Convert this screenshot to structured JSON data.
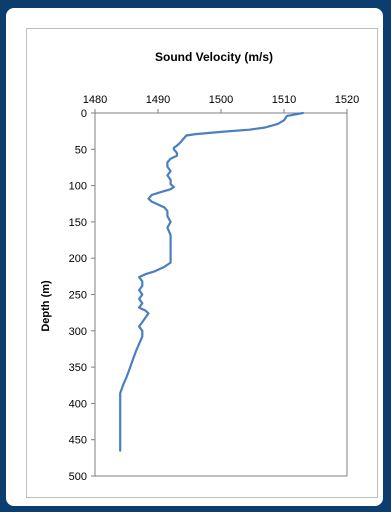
{
  "chart_data": {
    "type": "line",
    "title": "Sound Velocity (m/s)",
    "xlabel": "",
    "ylabel": "Depth (m)",
    "xlim": [
      1480,
      1520
    ],
    "ylim": [
      0,
      500
    ],
    "x_axis_position": "top",
    "y_inverted": true,
    "xticks": [
      "1480",
      "1490",
      "1500",
      "1510",
      "1520"
    ],
    "yticks": [
      "0",
      "50",
      "100",
      "150",
      "200",
      "250",
      "300",
      "350",
      "400",
      "450",
      "500"
    ],
    "grid": false,
    "colors": {
      "line": "#4a7fc1",
      "axis": "#7f7f7f",
      "frame": "#bfbfbf",
      "background": "#0b3d6e"
    },
    "series": [
      {
        "points": [
          [
            1513.0,
            0
          ],
          [
            1510.5,
            4
          ],
          [
            1510.0,
            10
          ],
          [
            1509.0,
            15
          ],
          [
            1507.0,
            20
          ],
          [
            1504.5,
            23
          ],
          [
            1500.0,
            26
          ],
          [
            1496.0,
            29
          ],
          [
            1494.5,
            31
          ],
          [
            1494.0,
            36
          ],
          [
            1493.5,
            41
          ],
          [
            1493.0,
            45
          ],
          [
            1492.5,
            48
          ],
          [
            1492.5,
            50
          ],
          [
            1493.0,
            55
          ],
          [
            1493.0,
            59
          ],
          [
            1492.0,
            63
          ],
          [
            1491.5,
            68
          ],
          [
            1491.5,
            74
          ],
          [
            1492.0,
            80
          ],
          [
            1491.5,
            86
          ],
          [
            1492.0,
            92
          ],
          [
            1492.0,
            98
          ],
          [
            1492.5,
            102
          ],
          [
            1492.0,
            105
          ],
          [
            1490.0,
            110
          ],
          [
            1489.0,
            113
          ],
          [
            1488.5,
            118
          ],
          [
            1489.0,
            122
          ],
          [
            1490.0,
            126
          ],
          [
            1491.0,
            130
          ],
          [
            1491.5,
            135
          ],
          [
            1491.5,
            142
          ],
          [
            1492.0,
            150
          ],
          [
            1491.5,
            158
          ],
          [
            1492.0,
            168
          ],
          [
            1492.0,
            178
          ],
          [
            1492.0,
            188
          ],
          [
            1492.0,
            198
          ],
          [
            1492.0,
            206
          ],
          [
            1491.0,
            212
          ],
          [
            1489.5,
            218
          ],
          [
            1488.0,
            222
          ],
          [
            1487.0,
            226
          ],
          [
            1487.5,
            232
          ],
          [
            1487.5,
            238
          ],
          [
            1487.0,
            244
          ],
          [
            1487.5,
            250
          ],
          [
            1487.0,
            256
          ],
          [
            1487.5,
            262
          ],
          [
            1487.0,
            268
          ],
          [
            1488.0,
            272
          ],
          [
            1488.5,
            276
          ],
          [
            1488.0,
            282
          ],
          [
            1487.5,
            288
          ],
          [
            1487.0,
            294
          ],
          [
            1487.5,
            300
          ],
          [
            1487.5,
            308
          ],
          [
            1487.0,
            318
          ],
          [
            1486.5,
            328
          ],
          [
            1486.0,
            340
          ],
          [
            1485.5,
            352
          ],
          [
            1485.0,
            364
          ],
          [
            1484.5,
            374
          ],
          [
            1484.0,
            386
          ],
          [
            1484.0,
            400
          ],
          [
            1484.0,
            412
          ],
          [
            1484.0,
            424
          ],
          [
            1484.0,
            436
          ],
          [
            1484.0,
            448
          ],
          [
            1484.0,
            458
          ],
          [
            1484.0,
            465
          ]
        ]
      }
    ]
  }
}
